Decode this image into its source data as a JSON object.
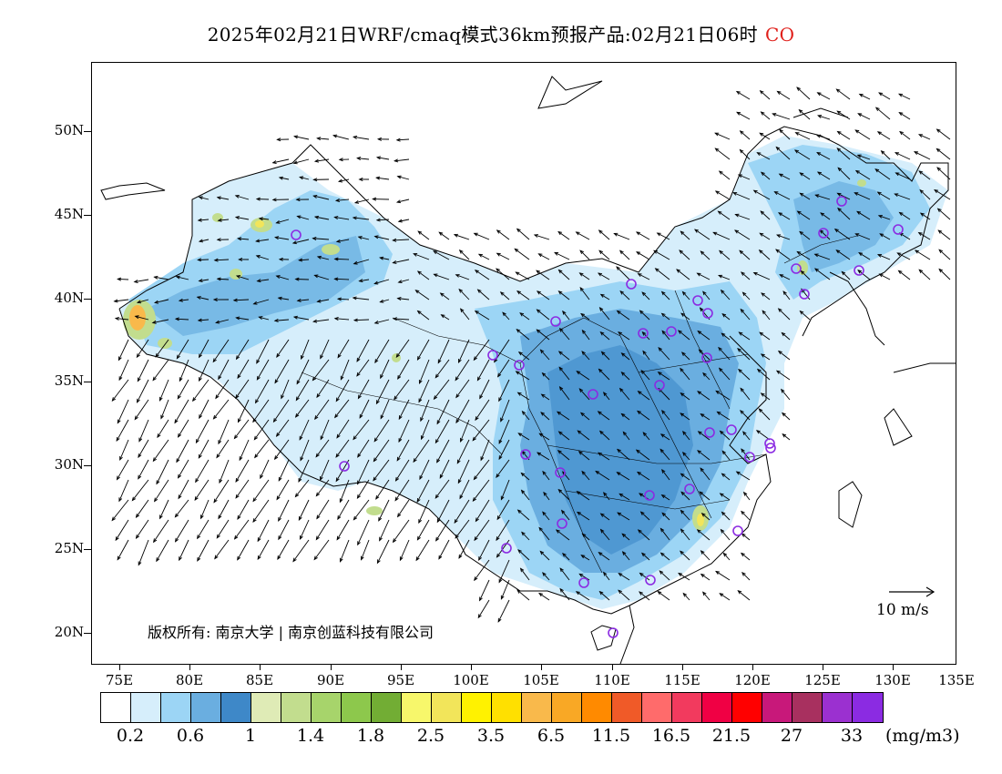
{
  "title": {
    "text": "2025年02月21日WRF/cmaq模式36km预报产品:02月21日06时",
    "species": "CO"
  },
  "axes": {
    "y_labels": [
      "50N",
      "45N",
      "40N",
      "35N",
      "30N",
      "25N",
      "20N"
    ],
    "x_labels": [
      "75E",
      "80E",
      "85E",
      "90E",
      "95E",
      "100E",
      "105E",
      "110E",
      "115E",
      "120E",
      "125E",
      "130E",
      "135E"
    ],
    "lon_range": [
      73.5,
      135
    ],
    "lat_range": [
      18,
      54
    ]
  },
  "copyright": "版权所有: 南京大学 | 南京创蓝科技有限公司",
  "reference_vector": {
    "label": "10 m/s"
  },
  "legend": {
    "colors": [
      "#ffffff",
      "#d6eefb",
      "#9cd5f5",
      "#6aaee0",
      "#3e88c8",
      "#dfebb6",
      "#c2dd8e",
      "#a7d46b",
      "#8dc84c",
      "#72ad34",
      "#f7f76b",
      "#f2e55a",
      "#fff200",
      "#ffe000",
      "#f9b94b",
      "#f9a825",
      "#ff8a00",
      "#f05a28",
      "#ff6b6b",
      "#f23a5e",
      "#f00044",
      "#ff0000",
      "#c8187a",
      "#a8305f",
      "#9b30d0",
      "#8b2be2"
    ],
    "labels": [
      "0.2",
      "0.6",
      "1",
      "1.4",
      "1.8",
      "2.5",
      "3.5",
      "6.5",
      "11.5",
      "16.5",
      "21.5",
      "27",
      "33"
    ],
    "unit": "(mg/m3)"
  },
  "site_markers_count": 40
}
